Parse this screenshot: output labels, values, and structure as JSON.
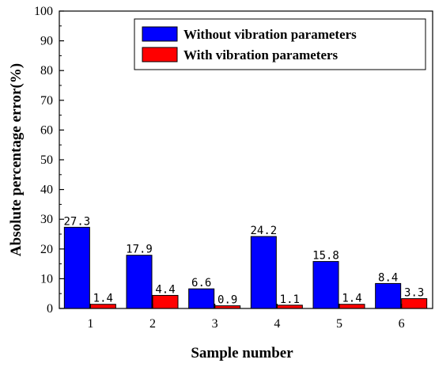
{
  "chart_data": {
    "type": "bar",
    "title": "",
    "xlabel": "Sample number",
    "ylabel": "Absolute percentage error(%)",
    "categories": [
      "1",
      "2",
      "3",
      "4",
      "5",
      "6"
    ],
    "ylim": [
      0,
      100
    ],
    "yticks": [
      "0",
      "10",
      "20",
      "30",
      "40",
      "50",
      "60",
      "70",
      "80",
      "90",
      "100"
    ],
    "grid": false,
    "legend_position": "top-right",
    "series": [
      {
        "name": "Without vibration parameters",
        "color": "#0000ff",
        "values": [
          27.3,
          17.9,
          6.6,
          24.2,
          15.8,
          8.4
        ],
        "labels": [
          "27.3",
          "17.9",
          "6.6",
          "24.2",
          "15.8",
          "8.4"
        ]
      },
      {
        "name": "With vibration parameters",
        "color": "#ff0000",
        "values": [
          1.4,
          4.4,
          0.9,
          1.1,
          1.4,
          3.3
        ],
        "labels": [
          "1.4",
          "4.4",
          "0.9",
          "1.1",
          "1.4",
          "3.3"
        ]
      }
    ]
  }
}
